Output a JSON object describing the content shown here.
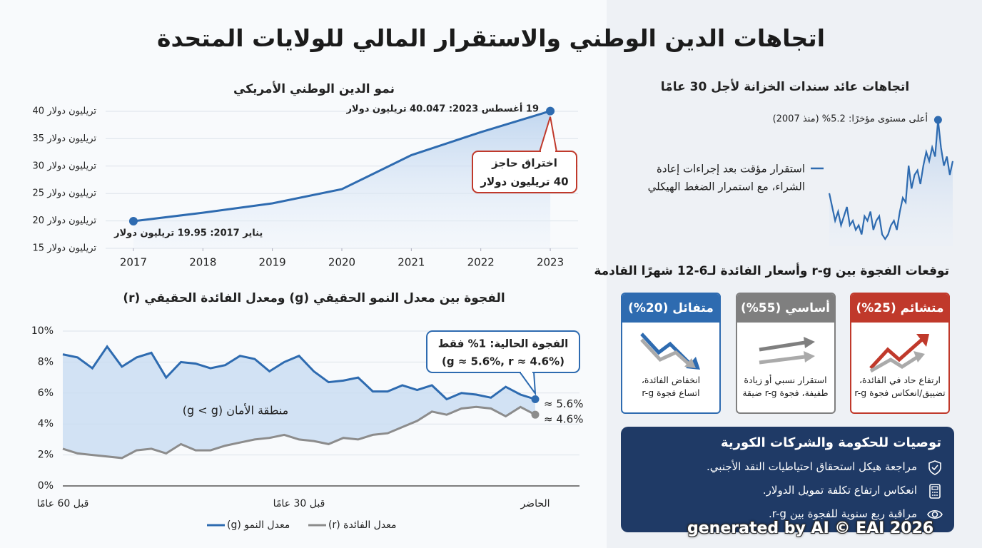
{
  "title": "اتجاهات الدين الوطني والاستقرار المالي للولايات المتحدة",
  "chart_data": [
    {
      "type": "line",
      "title": "نمو الدين الوطني الأمريكي",
      "x": [
        2017,
        2018,
        2019,
        2020,
        2021,
        2022,
        2023
      ],
      "xlim": [
        2016.6,
        2023.4
      ],
      "xticks": [
        2017,
        2018,
        2019,
        2020,
        2021,
        2022,
        2023
      ],
      "values": [
        19.95,
        21.5,
        23.2,
        25.8,
        32.0,
        36.2,
        40.047
      ],
      "color": "#2e6bb0",
      "ylim": [
        15,
        40
      ],
      "yticks": [
        {
          "value": 15,
          "label": "15 تريليون دولار"
        },
        {
          "value": 20,
          "label": "20 تريليون دولار"
        },
        {
          "value": 25,
          "label": "25 تريليون دولار"
        },
        {
          "value": 30,
          "label": "30 تريليون دولار"
        },
        {
          "value": 35,
          "label": "35 تريليون دولار"
        },
        {
          "value": 40,
          "label": "40 تريليون دولار"
        }
      ],
      "grid": true,
      "annotations": [
        "يناير 2017: 19.95 تريليون دولار",
        "19 أغسطس 2023: 40.047 تريليون دولار"
      ],
      "callout": [
        "اختراق حاجز",
        "40 تريليون دولار"
      ]
    },
    {
      "type": "line",
      "title": "الفجوة بين معدل النمو الحقيقي (g) ومعدل الفائدة الحقيقي (r)",
      "categories": [
        "قبل 60 عامًا",
        null,
        null,
        null,
        null,
        null,
        null,
        null,
        null,
        null,
        null,
        null,
        null,
        null,
        null,
        null,
        "قبل 30 عامًا",
        null,
        null,
        null,
        null,
        null,
        null,
        null,
        null,
        null,
        null,
        null,
        null,
        null,
        null,
        null,
        "الحاضر"
      ],
      "series": [
        {
          "name": "معدل النمو (g)",
          "color": "#2e6bb0",
          "end_label": "≈ 5.6%",
          "values": [
            8.5,
            8.3,
            7.6,
            9.0,
            7.7,
            8.3,
            8.6,
            7.0,
            8.0,
            7.9,
            7.6,
            7.8,
            8.4,
            8.2,
            7.4,
            8.0,
            8.4,
            7.4,
            6.7,
            6.8,
            7.0,
            6.1,
            6.1,
            6.5,
            6.2,
            6.5,
            5.6,
            6.0,
            5.9,
            5.7,
            6.4,
            5.9,
            5.6
          ]
        },
        {
          "name": "معدل الفائدة (r)",
          "color": "#8c8c8c",
          "end_label": "≈ 4.6%",
          "values": [
            2.4,
            2.1,
            2.0,
            1.9,
            1.8,
            2.3,
            2.4,
            2.1,
            2.7,
            2.3,
            2.3,
            2.6,
            2.8,
            3.0,
            3.1,
            3.3,
            3.0,
            2.9,
            2.7,
            3.1,
            3.0,
            3.3,
            3.4,
            3.8,
            4.2,
            4.8,
            4.6,
            5.0,
            5.1,
            5.0,
            4.5,
            5.1,
            4.6
          ]
        }
      ],
      "ylim": [
        0,
        10
      ],
      "yticks": [
        {
          "value": 0,
          "label": "0%"
        },
        {
          "value": 2,
          "label": "2%"
        },
        {
          "value": 4,
          "label": "4%"
        },
        {
          "value": 6,
          "label": "6%"
        },
        {
          "value": 8,
          "label": "8%"
        },
        {
          "value": 10,
          "label": "10%"
        }
      ],
      "grid": true,
      "fill_between": true,
      "zone_label": "منطقة الأمان (g < g)",
      "callout": [
        "الفجوة الحالية: 1% فقط",
        "(g ≈ 5.6%, r ≈ 4.6%)"
      ]
    },
    {
      "type": "line",
      "title": "اتجاهات عائد سندات الخزانة لأجل 30 عامًا",
      "values": [
        3.6,
        3.3,
        3.0,
        3.2,
        2.9,
        3.1,
        3.3,
        2.9,
        3.0,
        2.8,
        2.9,
        2.7,
        3.1,
        3.0,
        3.2,
        2.8,
        3.0,
        3.1,
        2.7,
        2.6,
        2.7,
        2.9,
        3.0,
        2.8,
        3.2,
        3.5,
        3.4,
        4.2,
        3.7,
        4.0,
        4.1,
        3.8,
        4.2,
        4.5,
        4.3,
        4.6,
        4.4,
        5.2,
        4.6,
        4.2,
        4.4,
        4.0,
        4.3
      ],
      "color": "#2e6bb0",
      "peak_label": "أعلى مستوى مؤخرًا: 5.2% (منذ 2007)",
      "note": [
        "استقرار مؤقت بعد إجراءات إعادة",
        "الشراء، مع استمرار الضغط الهيكلي"
      ]
    }
  ],
  "scenarios": {
    "title": "توقعات الفجوة بين r-g وأسعار الفائدة لـ6-12 شهرًا القادمة",
    "cards": [
      {
        "name": "متشائم (25%)",
        "color": "#c0392b",
        "lines": [
          "ارتفاع حاد في الفائدة،",
          "تضييق/انعكاس فجوة r-g"
        ]
      },
      {
        "name": "أساسي (55%)",
        "color": "#7f7f7f",
        "lines": [
          "استقرار نسبي أو زيادة",
          "طفيفة، فجوة r-g ضيقة"
        ]
      },
      {
        "name": "متفائل (20%)",
        "color": "#2e6bb0",
        "lines": [
          "انخفاض الفائدة،",
          "اتساع فجوة r-g"
        ]
      }
    ]
  },
  "recommendations": {
    "title": "توصيات للحكومة والشركات الكورية",
    "items": [
      "مراجعة هيكل استحقاق احتياطيات النقد الأجنبي.",
      "انعكاس ارتفاع تكلفة تمويل الدولار.",
      "مراقبة ربع سنوية للفجوة بين r-g."
    ]
  },
  "watermark": "generated by AI © EAI 2026"
}
